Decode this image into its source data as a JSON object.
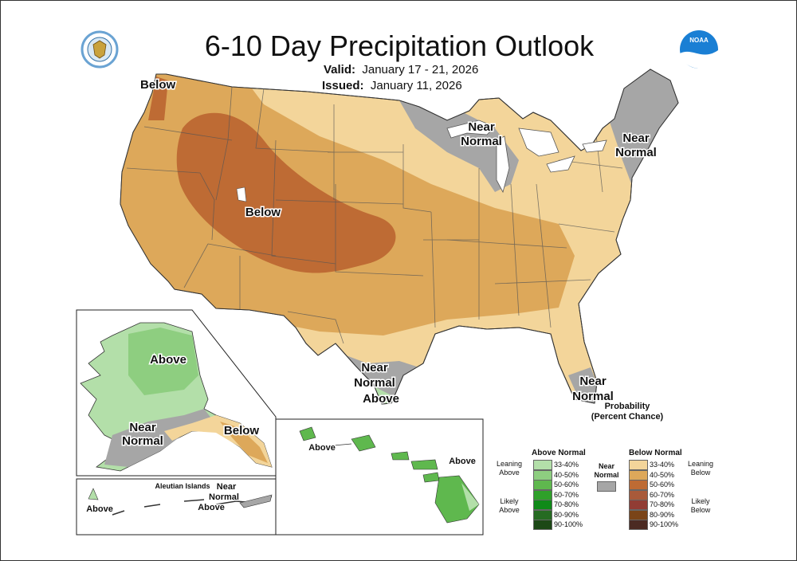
{
  "header": {
    "title": "6-10 Day Precipitation Outlook",
    "valid_label": "Valid:",
    "valid_value": "January 17 - 21, 2026",
    "issued_label": "Issued:",
    "issued_value": "January 11, 2026"
  },
  "logos": {
    "left": "doc-seal",
    "right": "noaa-logo",
    "noaa_text": "NOAA"
  },
  "map_labels": {
    "below_nw": "Below",
    "near_normal_gl_1": "Near",
    "near_normal_gl_2": "Normal",
    "near_normal_ne_1": "Near",
    "near_normal_ne_2": "Normal",
    "below_center": "Below",
    "near_normal_tx_1": "Near",
    "near_normal_tx_2": "Normal",
    "above_tx": "Above",
    "near_normal_fl_1": "Near",
    "near_normal_fl_2": "Normal",
    "ak_above": "Above",
    "ak_near_1": "Near",
    "ak_near_2": "Normal",
    "ak_below": "Below",
    "aleutian_title": "Aleutian Islands",
    "aleutian_above_w": "Above",
    "aleutian_near_1": "Near",
    "aleutian_near_2": "Normal",
    "aleutian_above_e": "Above",
    "hi_above_w": "Above",
    "hi_above_e": "Above"
  },
  "colors": {
    "near_normal": "#a6a6a6",
    "below_33_40": "#f3d59a",
    "below_40_50": "#dda85a",
    "below_50_60": "#be6b34",
    "above_33_40": "#b3dfa9",
    "above_40_50": "#8ece80",
    "above_50_60": "#5fb84e"
  },
  "legend": {
    "title_1": "Probability",
    "title_2": "(Percent Chance)",
    "above_header": "Above Normal",
    "below_header": "Below Normal",
    "near_label_1": "Near",
    "near_label_2": "Normal",
    "leaning_above_1": "Leaning",
    "leaning_above_2": "Above",
    "likely_above_1": "Likely",
    "likely_above_2": "Above",
    "leaning_below_1": "Leaning",
    "leaning_below_2": "Below",
    "likely_below_1": "Likely",
    "likely_below_2": "Below",
    "above": [
      {
        "label": "33-40%",
        "color": "#b3dfa9"
      },
      {
        "label": "40-50%",
        "color": "#8ece80"
      },
      {
        "label": "50-60%",
        "color": "#5fb84e"
      },
      {
        "label": "60-70%",
        "color": "#2fa02a"
      },
      {
        "label": "70-80%",
        "color": "#0f8a18"
      },
      {
        "label": "80-90%",
        "color": "#266b22"
      },
      {
        "label": "90-100%",
        "color": "#1c4816"
      }
    ],
    "below": [
      {
        "label": "33-40%",
        "color": "#f3d59a"
      },
      {
        "label": "40-50%",
        "color": "#dda85a"
      },
      {
        "label": "50-60%",
        "color": "#be6b34"
      },
      {
        "label": "60-70%",
        "color": "#a85a3a"
      },
      {
        "label": "70-80%",
        "color": "#913c34"
      },
      {
        "label": "80-90%",
        "color": "#7a4418"
      },
      {
        "label": "90-100%",
        "color": "#4b2a22"
      }
    ]
  }
}
